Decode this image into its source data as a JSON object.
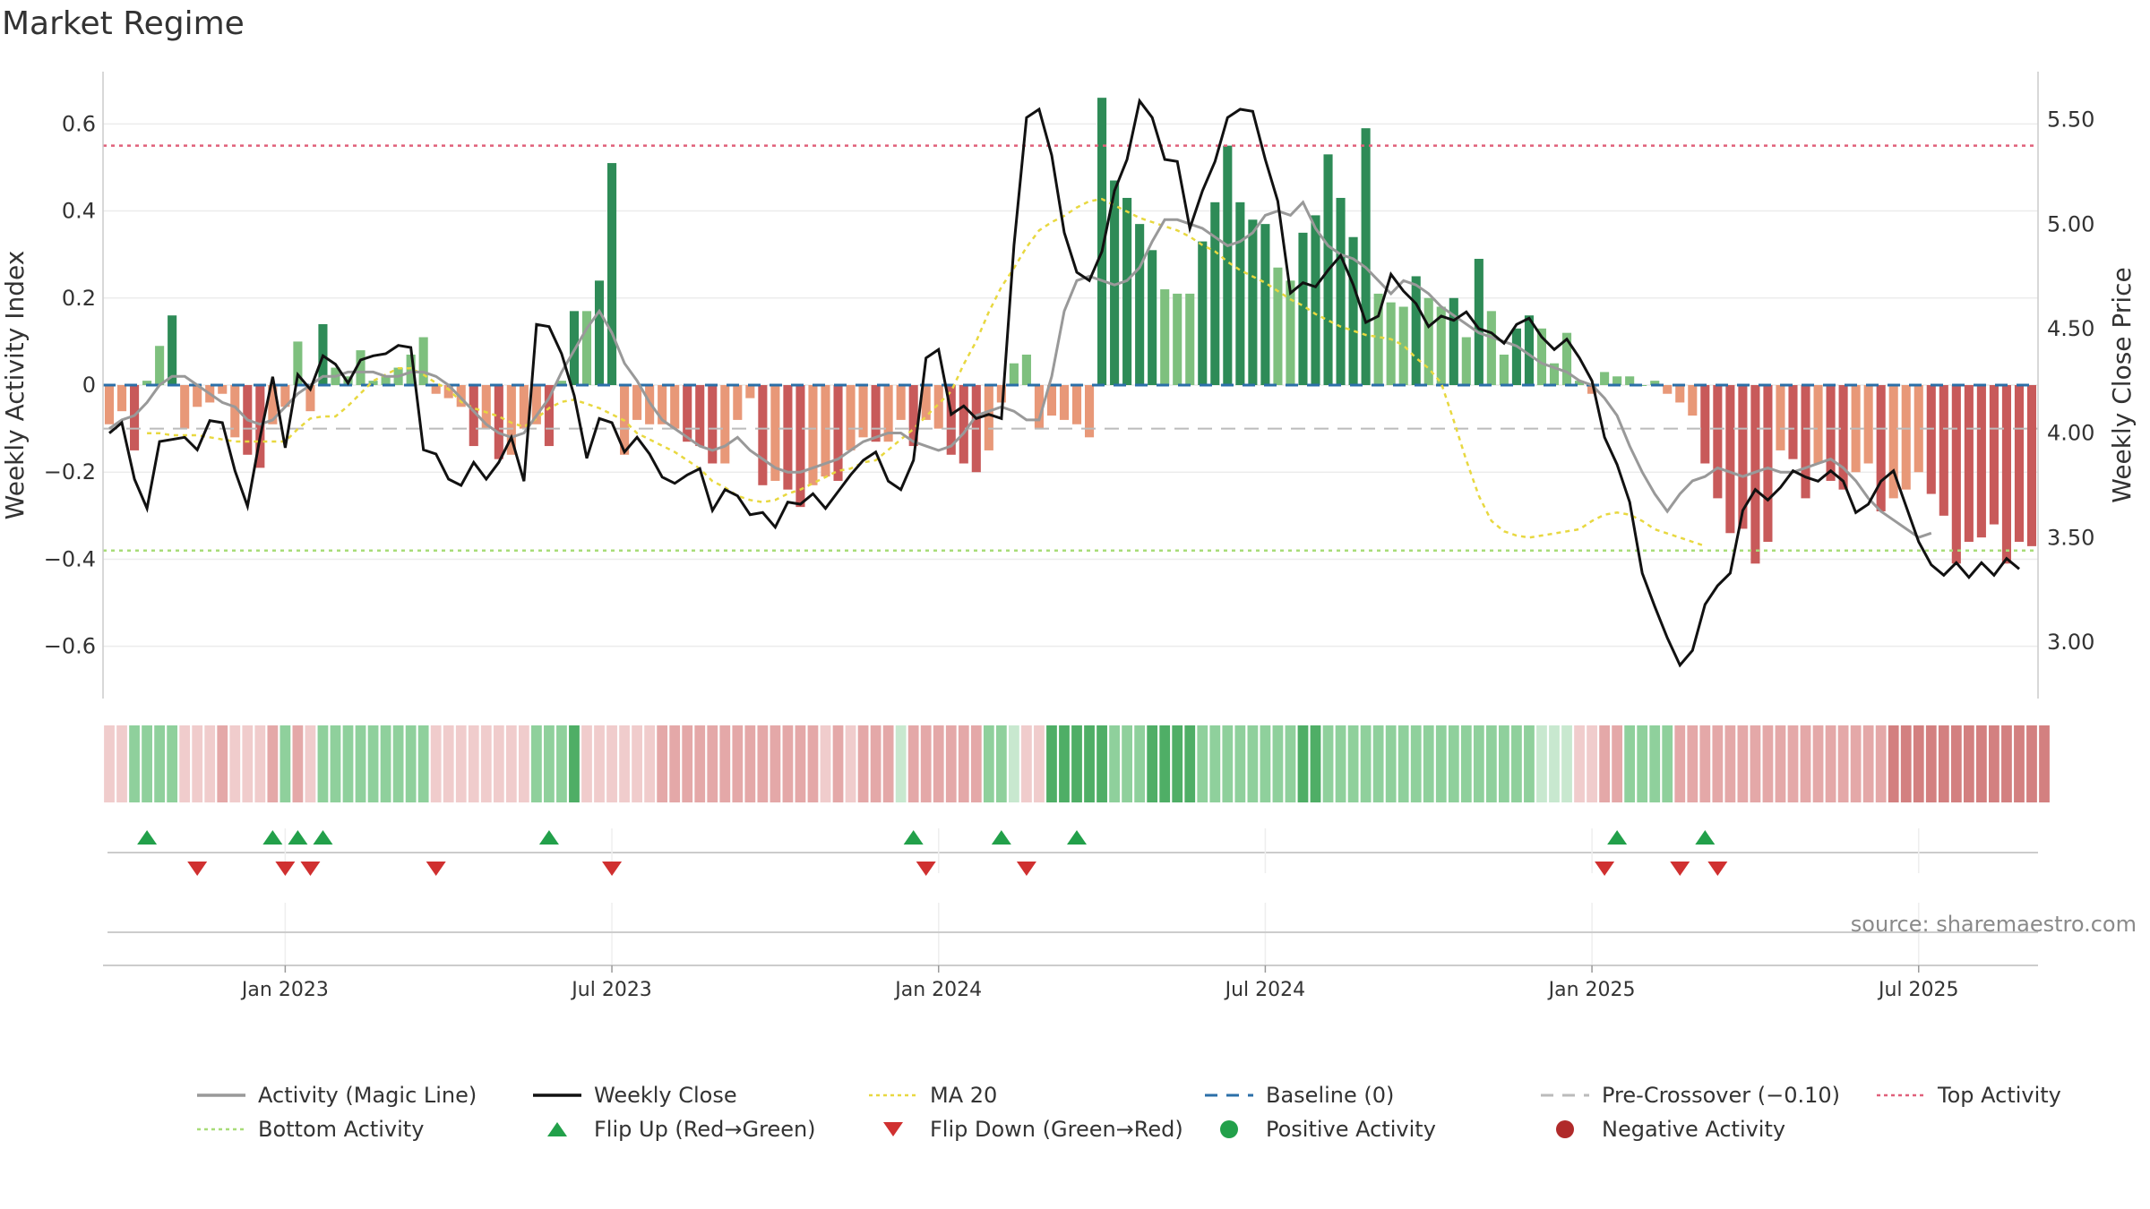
{
  "title": "Market Regime",
  "source": "source: sharemaestro.com",
  "colors": {
    "pos_dark": "#2e8b57",
    "pos_light": "#7ec07e",
    "neg_dark": "#c85a5a",
    "neg_light": "#e89878",
    "activity_line": "#999999",
    "close_line": "#111111",
    "ma_line": "#e8d840",
    "baseline": "#2b6fa8",
    "pre_crossover": "#bbbbbb",
    "top_line": "#e0607a",
    "bottom_line": "#a8dc78",
    "flip_up": "#22a04a",
    "flip_down": "#d03030",
    "strip_green_strong": "#4fae66",
    "strip_green": "#8fd09c",
    "strip_green_light": "#c8e8cf",
    "strip_red_light": "#f0cccc",
    "strip_red": "#e4a8a8",
    "strip_red_strong": "#d38080"
  },
  "chart_data": {
    "type": "bar",
    "title": "",
    "ylabel": "Weekly Activity Index",
    "y2label": "Weekly Close Price",
    "ylim": [
      -0.72,
      0.72
    ],
    "y_ticks": [
      -0.6,
      -0.4,
      -0.2,
      0,
      0.2,
      0.4,
      0.6
    ],
    "y2lim": [
      2.73,
      5.73
    ],
    "y2_ticks": [
      "3.00",
      "3.50",
      "4.00",
      "4.50",
      "5.00",
      "5.50"
    ],
    "x_ticks": [
      "Jan 2023",
      "Jul 2023",
      "Jan 2024",
      "Jul 2024",
      "Jan 2025",
      "Jul 2025"
    ],
    "x_tick_index": [
      14,
      40,
      66,
      92,
      118,
      144
    ],
    "top_activity": 0.55,
    "bottom_activity": -0.38,
    "pre_crossover": -0.1,
    "baseline": 0,
    "activity": [
      -0.09,
      -0.06,
      -0.15,
      0.01,
      0.09,
      0.16,
      -0.1,
      -0.05,
      -0.04,
      -0.02,
      -0.12,
      -0.16,
      -0.19,
      -0.09,
      -0.05,
      0.1,
      -0.06,
      0.14,
      0.04,
      0.02,
      0.08,
      0.01,
      0.02,
      0.04,
      0.07,
      0.11,
      -0.02,
      -0.03,
      -0.05,
      -0.14,
      -0.1,
      -0.17,
      -0.16,
      -0.1,
      -0.09,
      -0.14,
      0.01,
      0.17,
      0.17,
      0.24,
      0.51,
      -0.16,
      -0.08,
      -0.09,
      -0.09,
      -0.1,
      -0.13,
      -0.14,
      -0.18,
      -0.18,
      -0.08,
      -0.03,
      -0.23,
      -0.22,
      -0.24,
      -0.28,
      -0.23,
      -0.21,
      -0.22,
      -0.15,
      -0.12,
      -0.13,
      -0.13,
      -0.08,
      -0.14,
      -0.08,
      -0.1,
      -0.16,
      -0.18,
      -0.2,
      -0.15,
      -0.04,
      0.05,
      0.07,
      -0.1,
      -0.07,
      -0.08,
      -0.09,
      -0.12,
      0.66,
      0.47,
      0.43,
      0.37,
      0.31,
      0.22,
      0.21,
      0.21,
      0.33,
      0.42,
      0.55,
      0.42,
      0.38,
      0.37,
      0.27,
      0.24,
      0.35,
      0.39,
      0.53,
      0.43,
      0.34,
      0.59,
      0.21,
      0.19,
      0.18,
      0.25,
      0.2,
      0.18,
      0.2,
      0.11,
      0.29,
      0.17,
      0.07,
      0.13,
      0.16,
      0.13,
      0.05,
      0.12,
      0.01,
      -0.02,
      0.03,
      0.02,
      0.02,
      0.0,
      0.01,
      -0.02,
      -0.04,
      -0.07,
      -0.18,
      -0.26,
      -0.34,
      -0.33,
      -0.41,
      -0.36,
      -0.15,
      -0.17,
      -0.26,
      -0.18,
      -0.22,
      -0.24,
      -0.2,
      -0.18,
      -0.29,
      -0.26,
      -0.24,
      -0.2,
      -0.25,
      -0.3,
      -0.41,
      -0.36,
      -0.35,
      -0.32,
      -0.41,
      -0.36,
      -0.37
    ],
    "weekly_close": [
      4.0,
      4.05,
      3.78,
      3.64,
      3.96,
      3.97,
      3.98,
      3.92,
      4.06,
      4.05,
      3.82,
      3.65,
      3.98,
      4.27,
      3.93,
      4.28,
      4.21,
      4.37,
      4.33,
      4.24,
      4.35,
      4.37,
      4.38,
      4.42,
      4.41,
      3.92,
      3.9,
      3.78,
      3.75,
      3.86,
      3.78,
      3.86,
      3.98,
      3.77,
      4.52,
      4.51,
      4.38,
      4.18,
      3.88,
      4.07,
      4.05,
      3.91,
      3.98,
      3.9,
      3.79,
      3.76,
      3.8,
      3.83,
      3.63,
      3.73,
      3.7,
      3.61,
      3.62,
      3.55,
      3.67,
      3.66,
      3.71,
      3.64,
      3.72,
      3.8,
      3.87,
      3.91,
      3.77,
      3.73,
      3.87,
      4.36,
      4.4,
      4.09,
      4.13,
      4.07,
      4.09,
      4.07,
      4.9,
      5.51,
      5.55,
      5.33,
      4.96,
      4.77,
      4.73,
      4.87,
      5.16,
      5.31,
      5.59,
      5.51,
      5.31,
      5.3,
      4.98,
      5.16,
      5.3,
      5.51,
      5.55,
      5.54,
      5.31,
      5.11,
      4.67,
      4.72,
      4.7,
      4.78,
      4.85,
      4.71,
      4.53,
      4.56,
      4.76,
      4.68,
      4.62,
      4.51,
      4.56,
      4.54,
      4.58,
      4.5,
      4.48,
      4.43,
      4.52,
      4.55,
      4.46,
      4.4,
      4.45,
      4.36,
      4.25,
      3.98,
      3.85,
      3.67,
      3.33,
      3.17,
      3.02,
      2.89,
      2.96,
      3.18,
      3.27,
      3.33,
      3.63,
      3.73,
      3.68,
      3.74,
      3.82,
      3.79,
      3.77,
      3.82,
      3.77,
      3.62,
      3.66,
      3.77,
      3.82,
      3.65,
      3.48,
      3.37,
      3.32,
      3.38,
      3.31,
      3.38,
      3.32,
      3.4,
      3.35
    ],
    "activity_line": [
      -0.1,
      -0.08,
      -0.07,
      -0.04,
      0.0,
      0.02,
      0.02,
      0.0,
      -0.02,
      -0.04,
      -0.05,
      -0.08,
      -0.09,
      -0.08,
      -0.05,
      -0.02,
      0.0,
      0.02,
      0.02,
      0.03,
      0.03,
      0.03,
      0.02,
      0.02,
      0.03,
      0.03,
      0.02,
      0.0,
      -0.03,
      -0.06,
      -0.09,
      -0.11,
      -0.12,
      -0.11,
      -0.07,
      -0.03,
      0.03,
      0.08,
      0.13,
      0.17,
      0.12,
      0.05,
      0.01,
      -0.04,
      -0.08,
      -0.1,
      -0.12,
      -0.14,
      -0.15,
      -0.14,
      -0.12,
      -0.15,
      -0.17,
      -0.19,
      -0.2,
      -0.2,
      -0.19,
      -0.18,
      -0.17,
      -0.15,
      -0.13,
      -0.12,
      -0.11,
      -0.11,
      -0.13,
      -0.14,
      -0.15,
      -0.14,
      -0.11,
      -0.07,
      -0.06,
      -0.05,
      -0.06,
      -0.08,
      -0.08,
      0.02,
      0.17,
      0.24,
      0.25,
      0.24,
      0.23,
      0.24,
      0.27,
      0.33,
      0.38,
      0.38,
      0.37,
      0.36,
      0.34,
      0.32,
      0.33,
      0.35,
      0.39,
      0.4,
      0.39,
      0.42,
      0.36,
      0.32,
      0.3,
      0.29,
      0.27,
      0.24,
      0.21,
      0.24,
      0.23,
      0.21,
      0.18,
      0.16,
      0.14,
      0.12,
      0.11,
      0.1,
      0.09,
      0.07,
      0.05,
      0.04,
      0.03,
      0.01,
      0.0,
      -0.03,
      -0.07,
      -0.14,
      -0.2,
      -0.25,
      -0.29,
      -0.25,
      -0.22,
      -0.21,
      -0.19,
      -0.2,
      -0.21,
      -0.2,
      -0.19,
      -0.2,
      -0.2,
      -0.19,
      -0.18,
      -0.17,
      -0.19,
      -0.22,
      -0.26,
      -0.29,
      -0.31,
      -0.33,
      -0.35,
      -0.34
    ],
    "ma20": [
      4.0,
      4.0,
      3.99,
      3.99,
      3.99,
      3.98,
      3.97,
      3.96,
      3.96,
      3.96,
      3.96,
      3.96,
      4.02,
      4.07,
      4.08,
      4.08,
      4.13,
      4.19,
      4.25,
      4.28,
      4.31,
      4.31,
      4.28,
      4.24,
      4.21,
      4.15,
      4.12,
      4.1,
      4.08,
      4.05,
      4.03,
      4.07,
      4.12,
      4.15,
      4.16,
      4.14,
      4.12,
      4.09,
      4.06,
      4.0,
      3.97,
      3.94,
      3.91,
      3.87,
      3.83,
      3.77,
      3.74,
      3.7,
      3.68,
      3.67,
      3.68,
      3.71,
      3.73,
      3.76,
      3.79,
      3.82,
      3.83,
      3.86,
      3.87,
      3.92,
      3.97,
      4.02,
      4.08,
      4.14,
      4.2,
      4.33,
      4.44,
      4.58,
      4.7,
      4.79,
      4.89,
      4.97,
      5.01,
      5.04,
      5.08,
      5.11,
      5.12,
      5.09,
      5.06,
      5.03,
      5.01,
      4.99,
      4.97,
      4.94,
      4.9,
      4.87,
      4.82,
      4.78,
      4.75,
      4.72,
      4.68,
      4.64,
      4.61,
      4.57,
      4.54,
      4.51,
      4.49,
      4.47,
      4.46,
      4.45,
      4.42,
      4.36,
      4.31,
      4.24,
      4.06,
      3.87,
      3.7,
      3.58,
      3.53,
      3.51,
      3.5,
      3.51,
      3.52,
      3.53,
      3.54,
      3.58,
      3.61,
      3.62,
      3.61,
      3.58,
      3.54,
      3.52,
      3.5,
      3.48,
      3.46
    ],
    "ma20_start_index": 3,
    "strip": [
      1,
      1,
      2,
      2,
      3,
      2,
      1,
      1,
      1,
      2,
      1,
      1,
      1,
      2,
      3,
      2,
      1,
      2,
      2,
      2,
      2,
      2,
      2,
      2,
      2,
      2,
      1,
      1,
      1,
      1,
      1,
      1,
      1,
      1,
      4,
      4,
      3,
      6,
      1,
      1,
      1,
      1,
      1,
      1,
      2,
      2,
      2,
      2,
      2,
      2,
      2,
      2,
      2,
      2,
      2,
      2,
      2,
      1,
      2,
      1,
      2,
      2,
      2,
      1,
      2,
      2,
      2,
      2,
      2,
      2,
      3,
      3,
      1,
      1,
      1,
      5,
      5,
      5,
      5,
      5,
      4,
      4,
      4,
      5,
      5,
      5,
      5,
      4,
      4,
      4,
      4,
      4,
      4,
      4,
      4,
      5,
      6,
      4,
      4,
      4,
      4,
      4,
      4,
      4,
      4,
      4,
      4,
      4,
      4,
      4,
      4,
      4,
      4,
      4,
      1,
      1,
      1,
      1,
      1,
      2,
      2,
      2,
      2,
      2,
      2,
      2,
      2,
      2,
      2,
      2,
      2,
      2,
      2,
      2,
      2,
      2,
      2,
      2,
      2,
      2,
      2,
      2,
      3,
      3,
      3,
      3,
      3,
      3,
      3,
      3,
      3,
      3,
      3,
      3,
      3
    ],
    "strip_sign": [
      -1,
      -1,
      1,
      1,
      1,
      1,
      -1,
      -1,
      -1,
      -1,
      -1,
      -1,
      -1,
      -1,
      1,
      -1,
      -1,
      1,
      1,
      1,
      1,
      1,
      1,
      1,
      1,
      1,
      -1,
      -1,
      -1,
      -1,
      -1,
      -1,
      -1,
      -1,
      1,
      1,
      1,
      1,
      -1,
      -1,
      -1,
      -1,
      -1,
      -1,
      -1,
      -1,
      -1,
      -1,
      -1,
      -1,
      -1,
      -1,
      -1,
      -1,
      -1,
      -1,
      -1,
      -1,
      -1,
      -1,
      -1,
      -1,
      -1,
      1,
      -1,
      -1,
      -1,
      -1,
      -1,
      -1,
      1,
      1,
      1,
      -1,
      -1,
      1,
      1,
      1,
      1,
      1,
      1,
      1,
      1,
      1,
      1,
      1,
      1,
      1,
      1,
      1,
      1,
      1,
      1,
      1,
      1,
      1,
      1,
      1,
      1,
      1,
      1,
      1,
      1,
      1,
      1,
      1,
      1,
      1,
      1,
      1,
      1,
      1,
      1,
      1,
      1,
      1,
      1,
      -1,
      -1,
      -1,
      -1,
      1,
      1,
      1,
      1,
      -1,
      -1,
      -1,
      -1,
      -1,
      -1,
      -1,
      -1,
      -1,
      -1,
      -1,
      -1,
      -1,
      -1,
      -1,
      -1,
      -1,
      -1,
      -1,
      -1,
      -1,
      -1,
      -1,
      -1,
      -1,
      -1,
      -1,
      -1,
      -1,
      -1,
      -1
    ],
    "flip_up_index": [
      3,
      13,
      15,
      17,
      35,
      64,
      71,
      77,
      120,
      127
    ],
    "flip_down_index": [
      7,
      14,
      16,
      26,
      40,
      65,
      73,
      119,
      125,
      128
    ]
  },
  "legend": [
    {
      "label": "Activity (Magic Line)",
      "icon": "solid-line",
      "color": "#999999"
    },
    {
      "label": "Weekly Close",
      "icon": "solid-line",
      "color": "#111111"
    },
    {
      "label": "MA 20",
      "icon": "dotted-line",
      "color": "#e8d840"
    },
    {
      "label": "Baseline (0)",
      "icon": "dashed-line",
      "color": "#2b6fa8"
    },
    {
      "label": "Pre-Crossover (−0.10)",
      "icon": "dashed-line",
      "color": "#bbbbbb"
    },
    {
      "label": "Top Activity",
      "icon": "dotted-line",
      "color": "#e0607a"
    },
    {
      "label": "Bottom Activity",
      "icon": "dotted-line",
      "color": "#a8dc78"
    },
    {
      "label": "Flip Up (Red→Green)",
      "icon": "triangle-up-marker",
      "color": "#22a04a"
    },
    {
      "label": "Flip Down (Green→Red)",
      "icon": "triangle-down-marker",
      "color": "#d03030"
    },
    {
      "label": "Positive Activity",
      "icon": "circle-marker",
      "color": "#22a04a"
    },
    {
      "label": "Negative Activity",
      "icon": "circle-marker",
      "color": "#b02a2a"
    }
  ]
}
